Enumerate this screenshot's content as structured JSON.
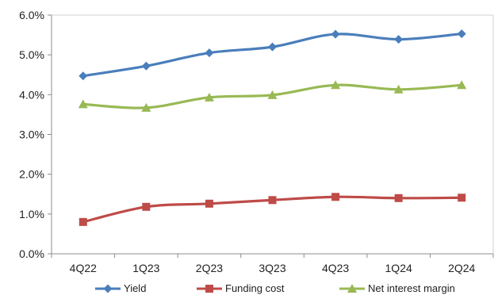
{
  "chart_data": {
    "type": "line",
    "categories": [
      "4Q22",
      "1Q23",
      "2Q23",
      "3Q23",
      "4Q23",
      "1Q24",
      "2Q24"
    ],
    "ylim": [
      0,
      6
    ],
    "y_tick_labels": [
      "0.0%",
      "1.0%",
      "2.0%",
      "3.0%",
      "4.0%",
      "5.0%",
      "6.0%"
    ],
    "y_ticks": [
      0,
      1,
      2,
      3,
      4,
      5,
      6
    ],
    "grid": false,
    "legend_position": "bottom",
    "series": [
      {
        "name": "Yield",
        "marker": "diamond",
        "color": "#4a7ebb",
        "values": [
          4.47,
          4.72,
          5.05,
          5.2,
          5.52,
          5.39,
          5.53
        ]
      },
      {
        "name": "Funding cost",
        "marker": "square",
        "color": "#be4b48",
        "values": [
          0.8,
          1.18,
          1.26,
          1.35,
          1.43,
          1.4,
          1.41
        ]
      },
      {
        "name": "Net interest margin",
        "marker": "triangle",
        "color": "#98b954",
        "values": [
          3.76,
          3.67,
          3.93,
          3.99,
          4.24,
          4.13,
          4.24
        ]
      }
    ]
  }
}
